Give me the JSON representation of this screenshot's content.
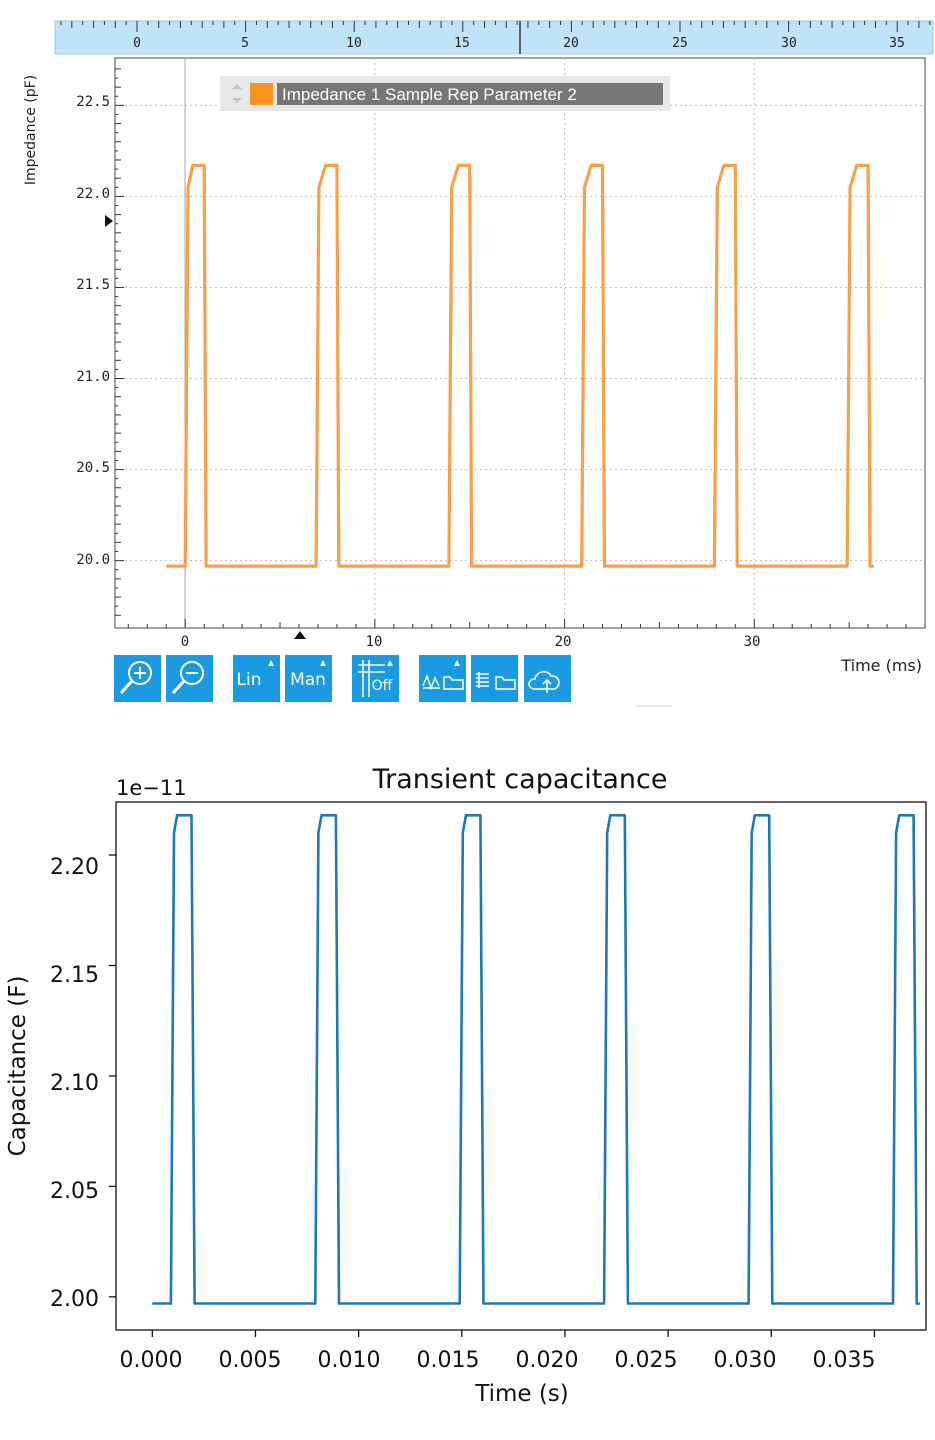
{
  "top_chart": {
    "legend_label": "Impedance 1 Sample Rep Parameter 2",
    "ylabel": "Impedance (pF)",
    "xlabel": "Time (ms)",
    "yticks": [
      "22.5",
      "22.0",
      "21.5",
      "21.0",
      "20.5",
      "20.0"
    ],
    "xticks": [
      "0",
      "10",
      "20",
      "30"
    ],
    "ruler_ticks": [
      "0",
      "5",
      "10",
      "15",
      "20",
      "25",
      "30",
      "35"
    ],
    "toolbar": {
      "zoom_in_icon": "zoom-in-icon",
      "zoom_out_icon": "zoom-out-icon",
      "scale_label": "Lin",
      "range_label": "Man",
      "cursor_label": "Off",
      "export_icon": "export-waveform-icon",
      "export_table_icon": "export-table-icon",
      "upload_icon": "cloud-upload-icon"
    },
    "colors": {
      "line": "#f7a04b",
      "ruler": "#bfe3f7",
      "button": "#1a9ae0"
    }
  },
  "chart_data": [
    {
      "type": "line",
      "title": "",
      "xlabel": "Time (ms)",
      "ylabel": "Impedance (pF)",
      "xlim": [
        -3.7,
        39
      ],
      "ylim": [
        19.63,
        22.76
      ],
      "grid": true,
      "legend": "top-left",
      "series": [
        {
          "name": "Impedance 1 Sample Rep Parameter 2",
          "color": "#f7a04b",
          "x": [
            -1.0,
            0.0,
            0.15,
            0.4,
            0.55,
            1.0,
            1.1,
            1.1,
            6.9,
            7.05,
            7.4,
            7.5,
            8.0,
            8.1,
            8.1,
            13.9,
            14.05,
            14.4,
            14.5,
            15.0,
            15.1,
            15.1,
            20.9,
            21.05,
            21.4,
            21.5,
            22.0,
            22.1,
            22.1,
            27.9,
            28.05,
            28.4,
            28.5,
            29.0,
            29.1,
            29.1,
            34.9,
            35.05,
            35.4,
            35.5,
            36.0,
            36.1,
            36.3
          ],
          "y": [
            19.97,
            19.97,
            22.05,
            22.17,
            22.17,
            22.17,
            19.97,
            19.97,
            19.97,
            22.05,
            22.17,
            22.17,
            22.17,
            19.97,
            19.97,
            19.97,
            22.05,
            22.17,
            22.17,
            22.17,
            19.97,
            19.97,
            19.97,
            22.05,
            22.17,
            22.17,
            22.17,
            19.97,
            19.97,
            19.97,
            22.05,
            22.17,
            22.17,
            22.17,
            19.97,
            19.97,
            19.97,
            22.05,
            22.17,
            22.17,
            22.17,
            19.97,
            19.97
          ]
        }
      ],
      "yticks": [
        20.0,
        20.5,
        21.0,
        21.5,
        22.0,
        22.5
      ],
      "xticks": [
        0,
        10,
        20,
        30
      ]
    },
    {
      "type": "line",
      "title": "Transient capacitance",
      "xlabel": "Time (s)",
      "ylabel": "Capacitance (F)",
      "offset_label": "1e−11",
      "xlim": [
        -0.00176,
        0.0375
      ],
      "ylim": [
        1.985,
        2.224
      ],
      "grid": false,
      "series": [
        {
          "color": "#1f77b4",
          "x": [
            0.0,
            0.0009,
            0.00105,
            0.0012,
            0.0019,
            0.00205,
            0.0021,
            0.0079,
            0.00805,
            0.0082,
            0.0089,
            0.00905,
            0.0091,
            0.0149,
            0.01505,
            0.0152,
            0.0159,
            0.01605,
            0.0161,
            0.0219,
            0.02205,
            0.0222,
            0.0229,
            0.02305,
            0.0231,
            0.0289,
            0.02905,
            0.0292,
            0.0299,
            0.03005,
            0.0301,
            0.0359,
            0.03605,
            0.0362,
            0.0369,
            0.03705,
            0.0372
          ],
          "y": [
            1.997,
            1.997,
            2.21,
            2.218,
            2.218,
            1.997,
            1.997,
            1.997,
            2.21,
            2.218,
            2.218,
            1.997,
            1.997,
            1.997,
            2.21,
            2.218,
            2.218,
            1.997,
            1.997,
            1.997,
            2.21,
            2.218,
            2.218,
            1.997,
            1.997,
            1.997,
            2.21,
            2.218,
            2.218,
            1.997,
            1.997,
            1.997,
            2.21,
            2.218,
            2.218,
            1.997,
            1.997
          ]
        }
      ],
      "yticks": [
        "2.00",
        "2.05",
        "2.10",
        "2.15",
        "2.20"
      ],
      "xticks": [
        "0.000",
        "0.005",
        "0.010",
        "0.015",
        "0.020",
        "0.025",
        "0.030",
        "0.035"
      ]
    }
  ]
}
